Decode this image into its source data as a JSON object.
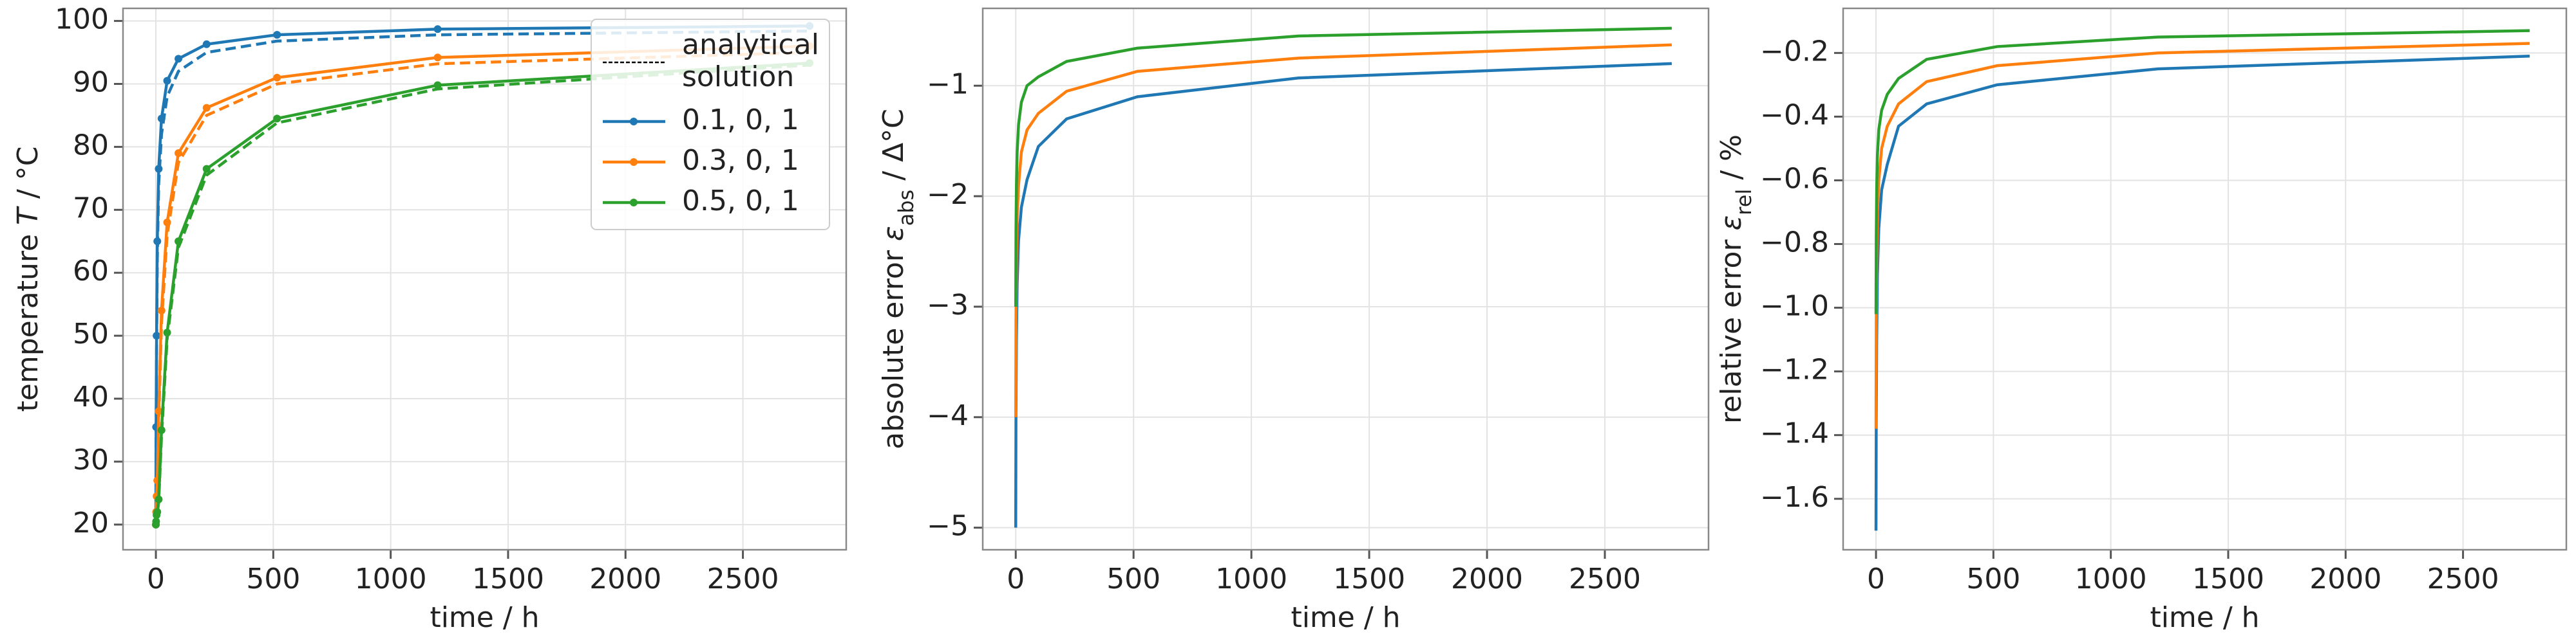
{
  "chart_data": [
    {
      "type": "line",
      "markers": true,
      "grid": true,
      "xlabel": [
        {
          "text": "time / h"
        }
      ],
      "ylabel": [
        {
          "text": "temperature "
        },
        {
          "text": "T",
          "style": "italic"
        },
        {
          "text": " / °C"
        }
      ],
      "x": [
        0,
        1,
        3,
        6,
        12,
        24,
        48,
        96,
        216,
        516,
        1200,
        2784
      ],
      "xlim": [
        -140,
        2940
      ],
      "xticks": [
        0,
        500,
        1000,
        1500,
        2000,
        2500
      ],
      "ylim": [
        16,
        102
      ],
      "yticks": [
        20,
        30,
        40,
        50,
        60,
        70,
        80,
        90,
        100
      ],
      "legend": "upper right",
      "analytical_legend": {
        "label": [
          "analytical",
          "solution"
        ],
        "color": "#000000"
      },
      "series": [
        {
          "name": "0.1, 0, 1",
          "color": "#1f77b4",
          "values": [
            20,
            35.5,
            50,
            65,
            76.5,
            84.5,
            90.5,
            94,
            96.3,
            97.8,
            98.7,
            99.2
          ],
          "analytical_values": [
            20,
            34,
            48,
            62,
            74,
            82,
            88,
            92,
            95,
            96.8,
            97.8,
            98.4
          ]
        },
        {
          "name": "0.3, 0, 1",
          "color": "#ff7f0e",
          "values": [
            20,
            22,
            24.5,
            27,
            38,
            54,
            68,
            79,
            86.2,
            91,
            94.2,
            96
          ],
          "analytical_values": [
            20,
            21.5,
            23.5,
            26,
            36,
            52,
            66,
            77.5,
            85,
            90,
            93.2,
            95
          ]
        },
        {
          "name": "0.5, 0, 1",
          "color": "#2ca02c",
          "values": [
            20,
            20.5,
            21.5,
            22,
            24,
            35,
            50.5,
            65,
            76.5,
            84.5,
            89.8,
            93.3
          ],
          "analytical_values": [
            20,
            20.3,
            21,
            21.7,
            23.5,
            34,
            49.5,
            64,
            75.5,
            83.8,
            89.2,
            93
          ]
        }
      ]
    },
    {
      "type": "line",
      "markers": false,
      "grid": true,
      "xlabel": [
        {
          "text": "time / h"
        }
      ],
      "ylabel": [
        {
          "text": "absolute error "
        },
        {
          "text": "ε",
          "style": "italic"
        },
        {
          "text": "abs",
          "style": "sub"
        },
        {
          "text": " / Δ°C"
        }
      ],
      "x": [
        0,
        1,
        3,
        6,
        12,
        24,
        48,
        96,
        216,
        516,
        1200,
        2784
      ],
      "xlim": [
        -140,
        2940
      ],
      "xticks": [
        0,
        500,
        1000,
        1500,
        2000,
        2500
      ],
      "ylim": [
        -5.2,
        -0.3
      ],
      "yticks": [
        {
          "value": -5,
          "label": "−5"
        },
        {
          "value": -4,
          "label": "−4"
        },
        {
          "value": -3,
          "label": "−3"
        },
        {
          "value": -2,
          "label": "−2"
        },
        {
          "value": -1,
          "label": "−1"
        }
      ],
      "series": [
        {
          "color": "#1f77b4",
          "values": [
            -5,
            -4,
            -3.3,
            -2.8,
            -2.4,
            -2.1,
            -1.85,
            -1.55,
            -1.3,
            -1.1,
            -0.93,
            -0.8
          ]
        },
        {
          "color": "#ff7f0e",
          "values": [
            -4,
            -3.1,
            -2.6,
            -2.2,
            -1.9,
            -1.6,
            -1.4,
            -1.25,
            -1.05,
            -0.87,
            -0.75,
            -0.63
          ]
        },
        {
          "color": "#2ca02c",
          "values": [
            -3,
            -2.3,
            -1.9,
            -1.6,
            -1.35,
            -1.15,
            -1.0,
            -0.92,
            -0.78,
            -0.66,
            -0.55,
            -0.48
          ]
        }
      ]
    },
    {
      "type": "line",
      "markers": false,
      "grid": true,
      "xlabel": [
        {
          "text": "time / h"
        }
      ],
      "ylabel": [
        {
          "text": "relative error "
        },
        {
          "text": "ε",
          "style": "italic"
        },
        {
          "text": "rel",
          "style": "sub"
        },
        {
          "text": " / %"
        }
      ],
      "x": [
        0,
        1,
        3,
        6,
        12,
        24,
        48,
        96,
        216,
        516,
        1200,
        2784
      ],
      "xlim": [
        -140,
        2940
      ],
      "xticks": [
        0,
        500,
        1000,
        1500,
        2000,
        2500
      ],
      "ylim": [
        -1.76,
        -0.06
      ],
      "yticks": [
        {
          "value": -1.6,
          "label": "−1.6"
        },
        {
          "value": -1.4,
          "label": "−1.4"
        },
        {
          "value": -1.2,
          "label": "−1.2"
        },
        {
          "value": -1.0,
          "label": "−1.0"
        },
        {
          "value": -0.8,
          "label": "−0.8"
        },
        {
          "value": -0.6,
          "label": "−0.6"
        },
        {
          "value": -0.4,
          "label": "−0.4"
        },
        {
          "value": -0.2,
          "label": "−0.2"
        }
      ],
      "series": [
        {
          "color": "#1f77b4",
          "values": [
            -1.7,
            -1.38,
            -1.1,
            -0.9,
            -0.75,
            -0.63,
            -0.55,
            -0.43,
            -0.36,
            -0.3,
            -0.25,
            -0.21
          ]
        },
        {
          "color": "#ff7f0e",
          "values": [
            -1.38,
            -1.05,
            -0.85,
            -0.7,
            -0.6,
            -0.5,
            -0.43,
            -0.36,
            -0.29,
            -0.24,
            -0.2,
            -0.17
          ]
        },
        {
          "color": "#2ca02c",
          "values": [
            -1.02,
            -0.78,
            -0.62,
            -0.52,
            -0.44,
            -0.38,
            -0.33,
            -0.28,
            -0.22,
            -0.18,
            -0.15,
            -0.13
          ]
        }
      ]
    }
  ]
}
